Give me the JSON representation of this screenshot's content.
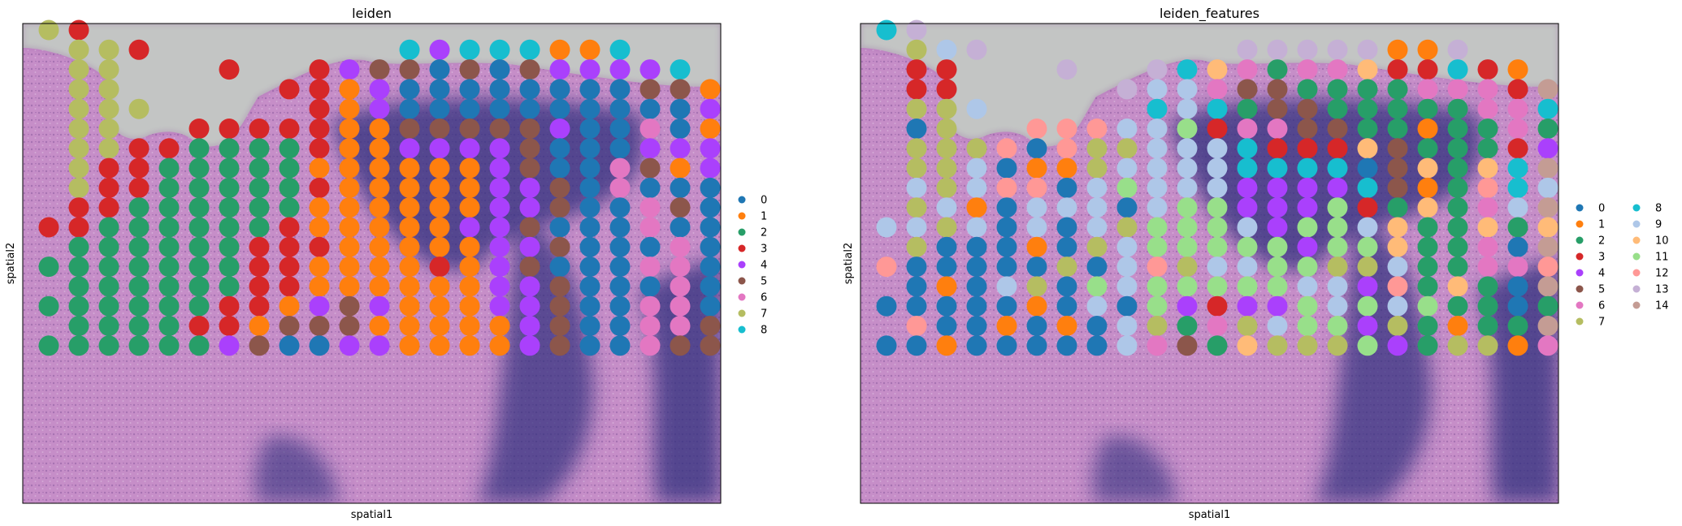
{
  "panels": [
    {
      "title": "leiden",
      "xlabel": "spatial1",
      "ylabel": "spatial2",
      "legend": {
        "placement": "right",
        "columns": 1,
        "categories": [
          "0",
          "1",
          "2",
          "3",
          "4",
          "5",
          "6",
          "7",
          "8"
        ]
      },
      "rows": [
        "7 3 . . . . . . . . . . . . . . . . . . . . .",
        ". 7 7 3 . . . . . . . . 8 4 8 8 8 1 1 8 . . .",
        ". 7 7 . . . 3 . . 3 4 5 5 0 5 0 5 4 4 4 4 8 .",
        ". 7 7 . . . . . 3 3 1 4 0 0 0 0 0 0 0 0 5 5 1",
        ". 7 7 7 . . . . . 3 1 4 0 0 0 0 0 0 0 0 0 0 4",
        ". 7 7 . . 3 3 3 3 3 1 1 5 5 5 5 5 4 0 0 6 0 1",
        ". 7 7 3 3 2 2 2 2 3 1 1 4 4 4 4 5 0 0 0 4 4 4",
        ". 7 3 3 2 2 2 2 2 1 1 1 1 1 1 4 5 0 0 6 5 1 4",
        ". 7 3 3 2 2 2 2 2 3 1 1 1 1 1 4 4 5 0 6 0 0 0",
        ". 3 3 2 2 2 2 2 2 1 1 1 1 1 1 4 4 5 0 0 6 5 0",
        "3 3 2 2 2 2 2 2 3 1 1 1 1 1 4 4 5 0 0 0 6 0 0",
        ". 2 2 2 2 2 2 3 3 3 1 1 1 1 1 4 4 5 0 0 0 6 0",
        "2 2 2 2 2 2 2 3 3 1 1 1 1 3 1 4 5 0 0 0 6 6 0",
        ". 2 2 2 2 2 2 3 3 1 1 1 1 1 1 4 4 5 0 0 0 6 0",
        "2 2 2 2 2 2 3 3 1 4 5 4 1 1 1 4 4 5 0 0 6 6 0",
        ". 2 2 2 2 3 3 1 5 5 5 1 1 1 1 1 4 5 0 0 6 6 5",
        "2 2 2 2 2 2 4 5 0 0 4 4 1 1 1 1 4 5 0 0 6 5 5"
      ]
    },
    {
      "title": "leiden_features",
      "xlabel": "spatial1",
      "ylabel": "spatial2",
      "legend": {
        "placement": "right",
        "columns": 2,
        "categories": [
          "0",
          "1",
          "2",
          "3",
          "4",
          "5",
          "6",
          "7",
          "8",
          "9",
          "10",
          "11",
          "12",
          "13",
          "14"
        ]
      },
      "rows": [
        "8 13 . . . . . . . . . . . . . . . . . . . . .",
        ". 7 9 13 . . . . . . . . 13 13 13 13 13 1 1 13 . . .",
        ". 3 3 . . . 13 . . 13 8 10 6 2 6 6 10 3 3 8 3 1 .",
        ". 3 3 . . . . . 13 9 9 6 5 5 2 2 2 2 6 6 6 3 14",
        ". 7 7 9 . . . . . 8 9 8 2 5 5 2 2 2 2 2 6 6 8",
        ". 0 7 . . 12 12 12 9 9 11 3 6 6 5 5 2 2 1 2 2 6 2",
        ". 7 7 7 12 0 12 7 7 9 9 9 8 3 3 3 10 5 2 2 2 3 4",
        ". 7 7 9 0 1 1 7 9 9 9 9 8 8 8 8 0 5 10 2 10 8 14",
        ". 9 7 9 12 12 0 9 11 9 9 9 4 4 4 4 8 5 1 2 12 8 9",
        ". 7 9 1 0 9 9 9 0 9 11 11 4 4 4 11 3 2 10 2 6 9 14",
        "9 9 7 9 0 9 0 9 7 11 11 11 9 4 11 11 9 10 2 2 10 2 10",
        ". 7 0 0 0 1 0 7 9 11 11 11 11 11 4 11 11 10 2 2 6 0 14",
        "12 0 0 0 0 0 7 0 9 12 7 9 9 11 11 7 7 9 2 2 6 6 12",
        ". 0 1 0 9 7 0 11 9 11 11 11 11 11 9 9 4 12 2 10 2 0 14",
        "0 0 0 0 0 1 0 9 0 11 4 3 4 4 11 9 11 9 11 2 2 0 2",
        ". 12 0 0 1 0 1 0 9 7 2 6 7 9 11 11 4 7 2 1 2 2 14",
        "0 0 1 0 0 0 0 0 9 6 5 2 10 7 7 7 11 4 2 7 7 1 6"
      ]
    }
  ],
  "colors": {
    "palette": [
      "#1f77b4",
      "#ff7f0e",
      "#279e68",
      "#d62728",
      "#aa40fc",
      "#8c564b",
      "#e377c2",
      "#b5bd61",
      "#17becf",
      "#aec7e8",
      "#ffbb78",
      "#98df8a",
      "#ff9896",
      "#c5b0d5",
      "#c49c94"
    ],
    "tissue": "#c68ec8",
    "background": "#c3c5c4",
    "dense_region": "#2f2e7d"
  }
}
